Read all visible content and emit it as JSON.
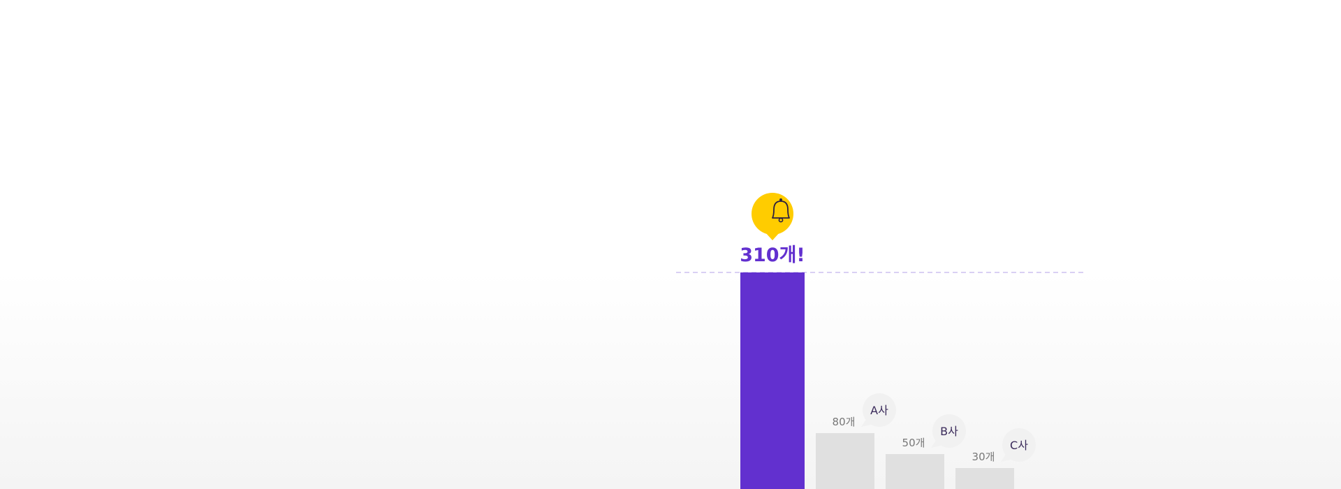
{
  "colors": {
    "highlight": "#6230cf",
    "other": "#e0e0e0",
    "dashed_line": "#d9d0f4",
    "badge_fill": "#f1f1f1",
    "badge_text": "#3a2a5a",
    "value_text": "#777777",
    "icon_yellow": "#ffcc00",
    "icon_purple": "#6230cf"
  },
  "chart_data": {
    "type": "bar",
    "title": "",
    "xlabel": "",
    "ylabel": "",
    "unit": "개",
    "ylim": [
      0,
      310
    ],
    "grid": false,
    "legend": "none",
    "highlight_value_label": "310개!",
    "bars": [
      {
        "name": "",
        "value": 310,
        "value_label": "310개!",
        "highlight": true,
        "icon": "bell-logo-icon"
      },
      {
        "name": "A사",
        "value": 80,
        "value_label": "80개",
        "highlight": false
      },
      {
        "name": "B사",
        "value": 50,
        "value_label": "50개",
        "highlight": false
      },
      {
        "name": "C사",
        "value": 30,
        "value_label": "30개",
        "highlight": false
      }
    ]
  }
}
